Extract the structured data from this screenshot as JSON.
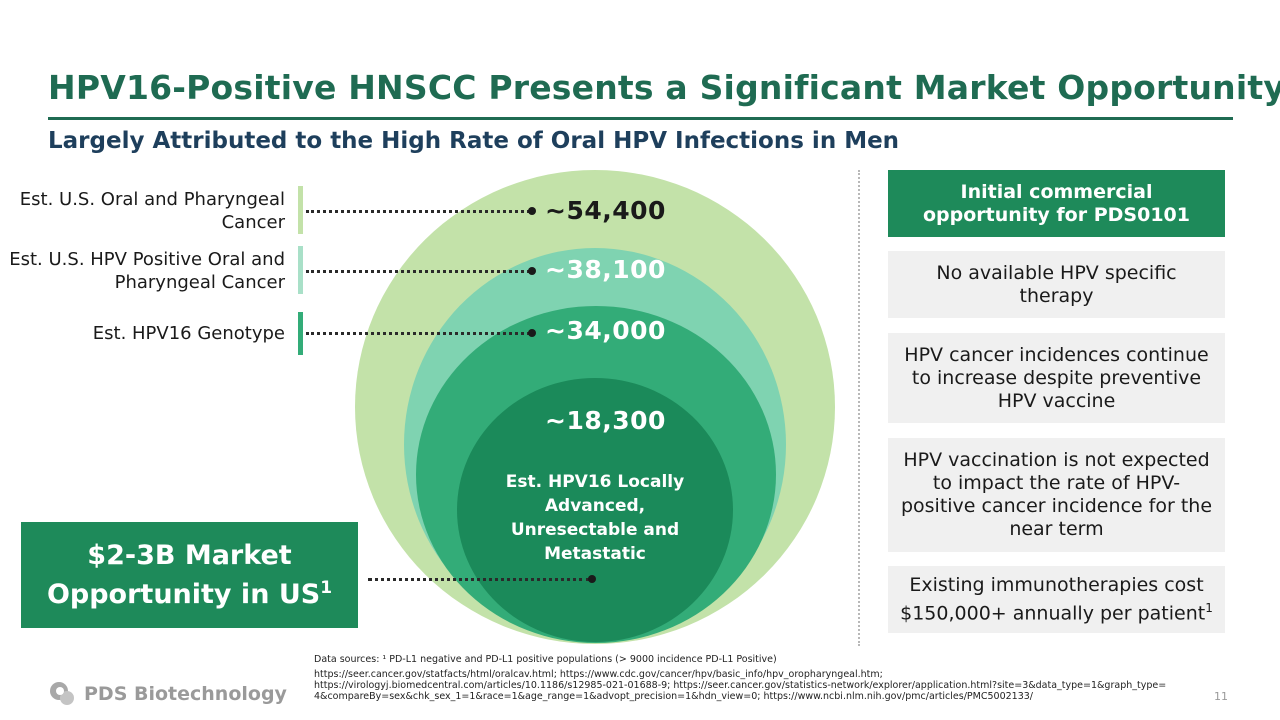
{
  "title": "HPV16-Positive HNSCC Presents a Significant Market Opportunity",
  "subtitle": "Largely Attributed to the High Rate of Oral HPV Infections in Men",
  "left_labels": {
    "oral_pharyngeal": "Est. U.S. Oral and Pharyngeal Cancer",
    "hpv_positive": "Est. U.S. HPV Positive Oral and Pharyngeal Cancer",
    "hpv16": "Est. HPV16 Genotype"
  },
  "circle_values": {
    "outer": "~54,400",
    "second": "~38,100",
    "third": "~34,000",
    "inner": "~18,300"
  },
  "inner_label": "Est. HPV16 Locally Advanced, Unresectable and Metastatic",
  "market_box": {
    "line1": "$2-3B Market",
    "line2": "Opportunity in US",
    "superscript": "1"
  },
  "right_boxes": {
    "header": "Initial commercial opportunity for PDS0101",
    "items": [
      "No available HPV specific therapy",
      "HPV cancer incidences continue to increase despite preventive HPV vaccine",
      "HPV vaccination is not expected to impact the rate of HPV-positive cancer incidence for the near term",
      "Existing immunotherapies cost $150,000+ annually per patient"
    ],
    "last_superscript": "1"
  },
  "sources": {
    "line1": "Data sources: ¹ PD-L1 negative and PD-L1 positive populations (> 9000 incidence  PD-L1 Positive)",
    "line2": "https://seer.cancer.gov/statfacts/html/oralcav.html; https://www.cdc.gov/cancer/hpv/basic_info/hpv_oropharyngeal.htm;",
    "line3": "https://virologyj.biomedcentral.com/articles/10.1186/s12985-021-01688-9; https://seer.cancer.gov/statistics-network/explorer/application.html?site=3&data_type=1&graph_type=",
    "line4": "4&compareBy=sex&chk_sex_1=1&race=1&age_range=1&advopt_precision=1&hdn_view=0; https://www.ncbi.nlm.nih.gov/pmc/articles/PMC5002133/"
  },
  "logo_text": "PDS Biotechnology",
  "page_number": "11",
  "colors": {
    "title": "#1f6b52",
    "subtitle": "#1e3f5c",
    "circle_outer": "#c3e2a9",
    "circle_second": "#7fd3b1",
    "circle_third": "#33ac78",
    "circle_inner": "#1b8a5a",
    "box_green": "#1e8a5a",
    "box_grey": "#f0f0f0"
  }
}
